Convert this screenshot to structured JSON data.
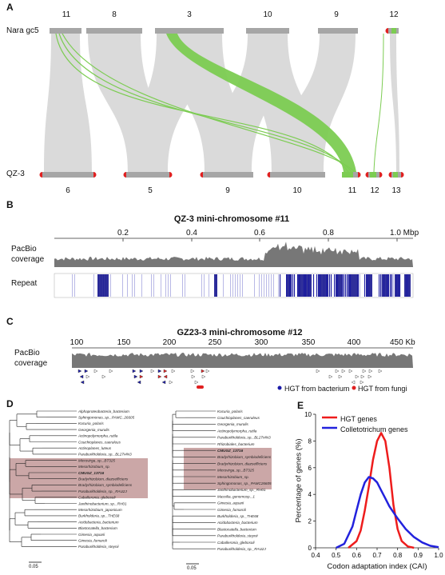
{
  "panels": {
    "a": {
      "letter": "A",
      "top_genome": "Nara gc5",
      "bottom_genome": "QZ-3",
      "top_chromosomes": [
        "11",
        "8",
        "3",
        "10",
        "9",
        "12"
      ],
      "bottom_chromosomes": [
        "6",
        "5",
        "9",
        "10",
        "11",
        "12",
        "13"
      ],
      "colors": {
        "bar": "#a6a6a6",
        "ribbon": "#d9d9d9",
        "hgt": "#7ccc52",
        "telomere": "#e02020"
      }
    },
    "b": {
      "letter": "B",
      "title": "QZ-3 mini-chromosome #11",
      "axis_ticks": [
        "0.2",
        "0.4",
        "0.6",
        "0.8",
        "1.0 Mbp"
      ],
      "track1": "PacBio\ncoverage",
      "track1_line1": "PacBio",
      "track1_line2": "coverage",
      "track2": "Repeat"
    },
    "c": {
      "letter": "C",
      "title": "GZ23-3 mini-chromosome #12",
      "axis_ticks": [
        "100",
        "150",
        "200",
        "250",
        "300",
        "350",
        "400",
        "450 Kb"
      ],
      "track1_line1": "PacBio",
      "track1_line2": "coverage",
      "legend_bacterium": "HGT from bacterium",
      "legend_fungi": "HGT from fungi",
      "colors": {
        "bacterium": "#1a1aa8",
        "fungi": "#e02020"
      }
    },
    "d": {
      "letter": "D",
      "scale_left": "0.05",
      "scale_right": "0.05",
      "left_tree": [
        "Alphaproteobacteria_bacterium",
        "Sphingomonas_sp._PAMC_26605",
        "Kocuria_polaris",
        "Georgenia_muralis",
        "Actinopolymorpha_rutila",
        "Couchioplanes_caeruleus",
        "Actinoplanes_luteus",
        "Paraburkholderia_sp._BL27I4N3",
        "Microvirga_sp._BT325",
        "Mesorhizobium_sp.",
        "CMUGZ_13716",
        "Bradyrhizobium_diazoefficiens",
        "Bradyrhizobium_symbiodeficiens",
        "Paraburkholderia_sp._RAU2J",
        "Caballeronia_glebosoli",
        "Janthinobacterium_sp._RH01",
        "Mesorhizobium_japonicum",
        "Burkholderia_sp._THE68",
        "Acidobacteria_bacterium",
        "Blastocatella_bacterium",
        "Gimesia_aquarii",
        "Gimesia_fumaroli",
        "Paraburkholderia_steynii"
      ],
      "right_tree": [
        "Kocuria_polaris",
        "Couchioplanes_caeruleus",
        "Georgenia_muralis",
        "Actinopolymorpha_rutila",
        "Paraburkholderia_sp._BL27I4N3",
        "Rhizobiales_bacterium",
        "CMUGZ_13716",
        "Bradyrhizobium_symbiodeficiens",
        "Bradyrhizobium_diazoefficiens",
        "Microvirga_sp._BT325",
        "Mesorhizobium_sp.",
        "Sphingomonas_sp._PAMC26605",
        "Janthinobacterium_sp._RH01",
        "Massilia_genomosp._1",
        "Gimesia_aquarii",
        "Gimesia_fumaroli",
        "Burkholderia_sp._THE68",
        "Acidobacteria_bacterium",
        "Blastocatella_bacterium",
        "Paraburkholderia_steynii",
        "Caballeronia_glebosoli",
        "Paraburkholderia_sp._RAU2J"
      ]
    },
    "e": {
      "letter": "E",
      "ylabel": "Percentage of genes (%)",
      "xlabel": "Codon adaptation index (CAI)",
      "legend": [
        "HGT genes",
        "Colletotrichum genes"
      ]
    }
  },
  "chart_data": {
    "type": "line",
    "xlabel": "Codon adaptation index (CAI)",
    "ylabel": "Percentage of genes (%)",
    "xlim": [
      0.4,
      1.0
    ],
    "ylim": [
      0,
      10
    ],
    "x_ticks": [
      "0.4",
      "0.5",
      "0.6",
      "0.7",
      "0.8",
      "0.9",
      "1.0"
    ],
    "y_ticks": [
      "0",
      "2",
      "4",
      "6",
      "8",
      "10"
    ],
    "grid": false,
    "legend_position": "top-left",
    "series": [
      {
        "name": "HGT genes",
        "color": "#ee1c1c",
        "x": [
          0.56,
          0.6,
          0.62,
          0.64,
          0.66,
          0.68,
          0.7,
          0.72,
          0.74,
          0.76,
          0.78,
          0.8,
          0.82,
          0.85,
          0.88
        ],
        "y": [
          0,
          0.5,
          1.3,
          2.8,
          4.6,
          6.6,
          8.0,
          8.6,
          8.0,
          6.0,
          3.2,
          1.4,
          0.5,
          0.1,
          0
        ]
      },
      {
        "name": "Colletotrichum genes",
        "color": "#2222dd",
        "x": [
          0.5,
          0.54,
          0.58,
          0.6,
          0.62,
          0.64,
          0.66,
          0.68,
          0.7,
          0.72,
          0.74,
          0.76,
          0.8,
          0.84,
          0.88,
          0.92,
          0.96,
          1.0
        ],
        "y": [
          0,
          0.3,
          1.6,
          2.8,
          4.0,
          4.9,
          5.3,
          5.2,
          4.9,
          4.3,
          3.7,
          3.1,
          2.2,
          1.4,
          0.8,
          0.4,
          0.15,
          0.05
        ]
      }
    ]
  }
}
